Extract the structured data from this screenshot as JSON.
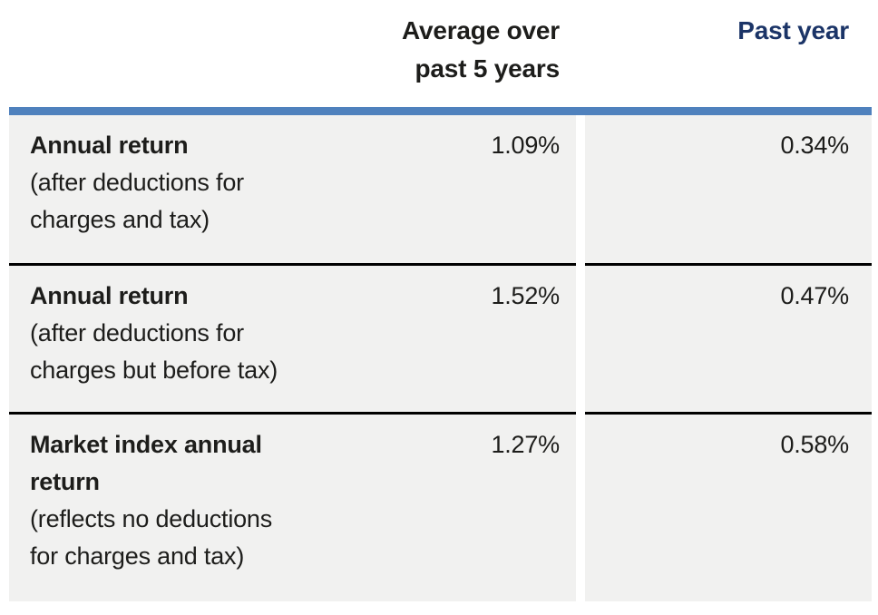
{
  "header": {
    "avg_5yr_label": "Average over\npast 5 years",
    "past_year_label": "Past year"
  },
  "rows": [
    {
      "title": "Annual return",
      "subtitle": "(after deductions for\ncharges and tax)",
      "avg_5yr": "1.09%",
      "past_year": "0.34%"
    },
    {
      "title": "Annual return",
      "subtitle": "(after deductions for\ncharges but before tax)",
      "avg_5yr": "1.52%",
      "past_year": "0.47%"
    },
    {
      "title": "Market index annual\nreturn",
      "subtitle": "(reflects no deductions\nfor charges and tax)",
      "avg_5yr": "1.27%",
      "past_year": "0.58%"
    }
  ],
  "colors": {
    "accent_bar": "#4f81bd",
    "past_year_header": "#1b3467",
    "row_background": "#f1f1f0",
    "divider": "#000000",
    "text": "#1d1d1b"
  }
}
